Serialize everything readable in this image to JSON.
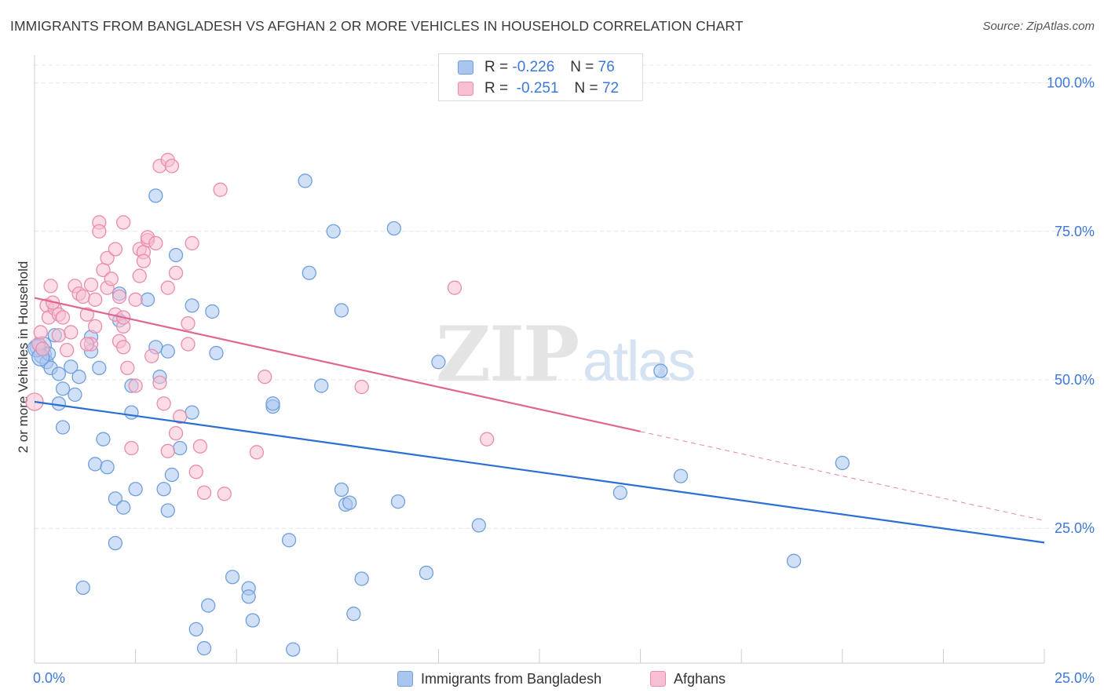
{
  "title": "IMMIGRANTS FROM BANGLADESH VS AFGHAN 2 OR MORE VEHICLES IN HOUSEHOLD CORRELATION CHART",
  "source": "Source: ZipAtlas.com",
  "watermark": {
    "zip": "ZIP",
    "atlas": "atlas"
  },
  "legend_top": [
    {
      "r_label": "R =",
      "r_value": "-0.226",
      "n_label": "N =",
      "n_value": "76"
    },
    {
      "r_label": "R =",
      "r_value": "-0.251",
      "n_label": "N =",
      "n_value": "72"
    }
  ],
  "legend_bottom": [
    {
      "label": "Immigrants from Bangladesh"
    },
    {
      "label": "Afghans"
    }
  ],
  "colors": {
    "blue_fill": "#a9c7ee",
    "blue_stroke": "#6f9fdc",
    "blue_line": "#2a6fd1",
    "pink_fill": "#f7bfd3",
    "pink_stroke": "#e98cad",
    "pink_line": "#e06690",
    "tick_label": "#3b78d8",
    "grid": "#e6e6e6"
  },
  "chart_data": {
    "type": "scatter",
    "title": "IMMIGRANTS FROM BANGLADESH VS AFGHAN 2 OR MORE VEHICLES IN HOUSEHOLD CORRELATION CHART",
    "xlabel": "",
    "ylabel": "2 or more Vehicles in Household",
    "xlim": [
      0,
      25
    ],
    "ylim": [
      2.3,
      104.7
    ],
    "x_tick_labels": [
      {
        "value": 0,
        "label": "0.0%"
      },
      {
        "value": 25,
        "label": "25.0%"
      }
    ],
    "y_tick_labels": [
      {
        "value": 25,
        "label": "25.0%"
      },
      {
        "value": 50,
        "label": "50.0%"
      },
      {
        "value": 75,
        "label": "75.0%"
      },
      {
        "value": 100,
        "label": "100.0%"
      }
    ],
    "grid": true,
    "legend_position": "top-center",
    "series": [
      {
        "name": "Immigrants from Bangladesh",
        "color": "#a9c7ee",
        "trend": {
          "x0": 0,
          "y0": 46.3,
          "x1": 25,
          "y1": 22.6
        },
        "points": [
          [
            0.1,
            55.5
          ],
          [
            0.2,
            54.2
          ],
          [
            0.3,
            53.0
          ],
          [
            0.4,
            52.0
          ],
          [
            0.2,
            55.8
          ],
          [
            0.35,
            54.4
          ],
          [
            0.5,
            57.5
          ],
          [
            0.6,
            51.0
          ],
          [
            0.7,
            48.5
          ],
          [
            0.9,
            52.2
          ],
          [
            0.6,
            46.0
          ],
          [
            1.0,
            47.5
          ],
          [
            1.1,
            50.5
          ],
          [
            0.7,
            42.0
          ],
          [
            1.4,
            57.2
          ],
          [
            1.4,
            54.8
          ],
          [
            1.6,
            52.0
          ],
          [
            1.7,
            40.0
          ],
          [
            1.5,
            35.8
          ],
          [
            1.8,
            35.3
          ],
          [
            2.1,
            60.0
          ],
          [
            2.1,
            64.5
          ],
          [
            2.4,
            49.0
          ],
          [
            2.4,
            44.5
          ],
          [
            2.0,
            30.0
          ],
          [
            2.2,
            28.5
          ],
          [
            2.5,
            31.6
          ],
          [
            2.8,
            63.5
          ],
          [
            3.0,
            81.0
          ],
          [
            3.0,
            55.5
          ],
          [
            3.1,
            50.5
          ],
          [
            3.2,
            31.6
          ],
          [
            3.3,
            54.8
          ],
          [
            3.3,
            28.0
          ],
          [
            3.4,
            34.0
          ],
          [
            3.5,
            71.0
          ],
          [
            3.6,
            38.5
          ],
          [
            3.9,
            62.5
          ],
          [
            3.9,
            44.5
          ],
          [
            4.4,
            61.5
          ],
          [
            4.5,
            54.5
          ],
          [
            2.0,
            22.5
          ],
          [
            1.2,
            15.0
          ],
          [
            4.0,
            8.0
          ],
          [
            4.2,
            4.8
          ],
          [
            4.3,
            12.0
          ],
          [
            4.9,
            16.8
          ],
          [
            5.3,
            14.9
          ],
          [
            5.3,
            13.5
          ],
          [
            5.4,
            9.5
          ],
          [
            5.9,
            45.5
          ],
          [
            5.9,
            46.0
          ],
          [
            6.3,
            23.0
          ],
          [
            6.4,
            4.6
          ],
          [
            6.7,
            83.5
          ],
          [
            6.8,
            68.0
          ],
          [
            7.1,
            49.0
          ],
          [
            7.4,
            75.0
          ],
          [
            7.6,
            61.7
          ],
          [
            7.6,
            31.5
          ],
          [
            7.7,
            29.0
          ],
          [
            7.8,
            29.3
          ],
          [
            7.9,
            10.6
          ],
          [
            8.1,
            16.5
          ],
          [
            8.9,
            75.5
          ],
          [
            9.0,
            29.5
          ],
          [
            9.7,
            17.5
          ],
          [
            10.0,
            53.0
          ],
          [
            11.0,
            25.5
          ],
          [
            14.5,
            31.0
          ],
          [
            15.5,
            51.5
          ],
          [
            18.8,
            19.5
          ],
          [
            20.0,
            36.0
          ],
          [
            16.0,
            33.8
          ],
          [
            0.05,
            55.3
          ],
          [
            0.15,
            53.8
          ]
        ]
      },
      {
        "name": "Afghans",
        "color": "#f7bfd3",
        "trend": {
          "x0": 0,
          "y0": 63.8,
          "x1": 15,
          "y1": 41.3,
          "dashed_to_x": 25,
          "dashed_to_y": 26.3
        },
        "points": [
          [
            0.0,
            46.3
          ],
          [
            0.1,
            56.0
          ],
          [
            0.15,
            58.0
          ],
          [
            0.2,
            55.2
          ],
          [
            0.3,
            62.5
          ],
          [
            0.35,
            60.5
          ],
          [
            0.4,
            65.8
          ],
          [
            0.5,
            62.0
          ],
          [
            0.6,
            61.0
          ],
          [
            0.6,
            57.5
          ],
          [
            0.7,
            60.5
          ],
          [
            0.8,
            55.0
          ],
          [
            0.9,
            58.0
          ],
          [
            1.0,
            65.8
          ],
          [
            1.1,
            64.5
          ],
          [
            1.2,
            64.0
          ],
          [
            1.3,
            61.0
          ],
          [
            1.4,
            66.0
          ],
          [
            1.4,
            56.0
          ],
          [
            1.5,
            59.0
          ],
          [
            1.5,
            63.5
          ],
          [
            1.6,
            76.5
          ],
          [
            1.6,
            75.0
          ],
          [
            1.7,
            68.5
          ],
          [
            1.8,
            65.5
          ],
          [
            1.8,
            70.5
          ],
          [
            1.9,
            67.0
          ],
          [
            2.0,
            72.0
          ],
          [
            2.0,
            61.0
          ],
          [
            2.1,
            64.0
          ],
          [
            2.1,
            56.5
          ],
          [
            2.2,
            59.0
          ],
          [
            2.2,
            60.5
          ],
          [
            2.2,
            76.5
          ],
          [
            2.2,
            55.5
          ],
          [
            2.3,
            52.0
          ],
          [
            2.4,
            38.5
          ],
          [
            2.5,
            63.5
          ],
          [
            2.5,
            49.0
          ],
          [
            2.6,
            67.5
          ],
          [
            2.6,
            72.0
          ],
          [
            2.7,
            71.5
          ],
          [
            2.7,
            70.0
          ],
          [
            2.8,
            73.5
          ],
          [
            2.8,
            74.0
          ],
          [
            2.9,
            54.0
          ],
          [
            3.0,
            73.0
          ],
          [
            3.1,
            86.0
          ],
          [
            3.1,
            49.5
          ],
          [
            3.2,
            46.0
          ],
          [
            3.3,
            38.0
          ],
          [
            3.3,
            65.5
          ],
          [
            3.3,
            87.0
          ],
          [
            3.4,
            86.0
          ],
          [
            3.5,
            41.0
          ],
          [
            3.5,
            68.0
          ],
          [
            3.6,
            43.8
          ],
          [
            3.8,
            59.5
          ],
          [
            3.8,
            56.0
          ],
          [
            3.9,
            73.0
          ],
          [
            4.0,
            34.5
          ],
          [
            4.1,
            38.8
          ],
          [
            4.2,
            31.0
          ],
          [
            4.7,
            30.8
          ],
          [
            4.6,
            82.0
          ],
          [
            5.5,
            37.8
          ],
          [
            5.7,
            50.5
          ],
          [
            8.1,
            48.8
          ],
          [
            10.4,
            65.5
          ],
          [
            11.2,
            40.0
          ],
          [
            1.3,
            56.0
          ],
          [
            0.45,
            63.0
          ]
        ]
      }
    ]
  }
}
